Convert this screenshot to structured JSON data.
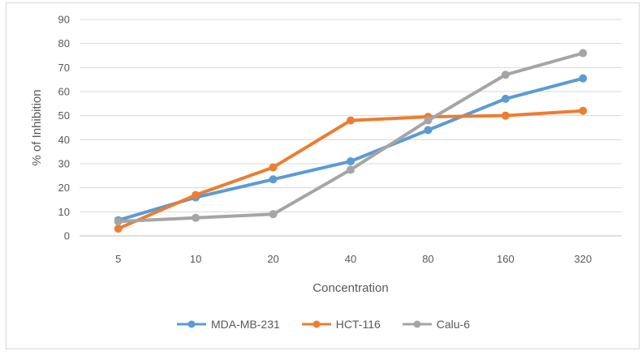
{
  "figure": {
    "background": "#ffffff",
    "border_color": "#d6d6d6"
  },
  "chart_data": {
    "type": "line",
    "title": "",
    "xlabel": "Concentration",
    "ylabel": "% of Inhibition",
    "categories": [
      "5",
      "10",
      "20",
      "40",
      "80",
      "160",
      "320"
    ],
    "series": [
      {
        "name": "MDA-MB-231",
        "color": "#5B9BD5",
        "values": [
          6.5,
          16,
          23.5,
          31,
          44,
          57,
          65.5
        ]
      },
      {
        "name": "HCT-116",
        "color": "#ED7D31",
        "values": [
          3,
          17,
          28.5,
          48,
          49.5,
          50,
          52
        ]
      },
      {
        "name": "Calu-6",
        "color": "#A5A5A5",
        "values": [
          6,
          7.5,
          9,
          27.5,
          48,
          67,
          76
        ]
      }
    ],
    "ylim": [
      0,
      90
    ],
    "ytick_step": 10,
    "grid": true,
    "legend_position": "bottom",
    "marker": "circle",
    "text_color": "#595959",
    "gridline_color": "#D9D9D9",
    "axis_line_color": "#BFBFBF"
  }
}
